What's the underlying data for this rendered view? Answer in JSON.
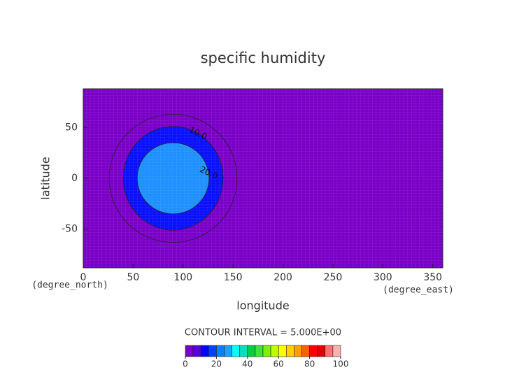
{
  "chart_data": {
    "type": "contour",
    "title": "specific humidity",
    "xlabel": "longitude",
    "ylabel": "latitude",
    "xunit": "(degree_east)",
    "yunit": "(degree_north)",
    "xlim": [
      0,
      360
    ],
    "ylim": [
      -88,
      88
    ],
    "xticks": [
      0,
      50,
      100,
      150,
      200,
      250,
      300,
      350
    ],
    "yticks": [
      -50,
      0,
      50
    ],
    "background_color": "#7a00c8",
    "contours": [
      {
        "level": 5,
        "lon_center": 90,
        "lat_center": 0,
        "lon_radius": 64,
        "lat_radius": 63,
        "fill": "#7a00c8"
      },
      {
        "level": 10,
        "label": "10.0",
        "lon_center": 90,
        "lat_center": 0,
        "lon_radius": 50,
        "lat_radius": 51,
        "fill": "#0a10ff"
      },
      {
        "level": 20,
        "label": "20.0",
        "lon_center": 90,
        "lat_center": 0,
        "lon_radius": 36,
        "lat_radius": 35,
        "fill": "#1e90ff"
      }
    ],
    "contour_interval": "CONTOUR INTERVAL = 5.000E+00",
    "colorbar": {
      "levels": [
        0,
        5,
        10,
        15,
        20,
        25,
        30,
        35,
        40,
        45,
        50,
        55,
        60,
        65,
        70,
        75,
        80,
        85,
        90,
        95,
        100
      ],
      "colors": [
        "#7a00c8",
        "#5a00e0",
        "#0000ff",
        "#0040ff",
        "#0a80ff",
        "#1ea0ff",
        "#00ffff",
        "#00e0c0",
        "#00d040",
        "#40e040",
        "#80f000",
        "#c0ff00",
        "#ffff00",
        "#ffd000",
        "#ffa000",
        "#ff6000",
        "#ff0000",
        "#e00000",
        "#ff7070",
        "#ffb0b0"
      ],
      "ticks": [
        0,
        20,
        40,
        60,
        80,
        100
      ]
    }
  }
}
